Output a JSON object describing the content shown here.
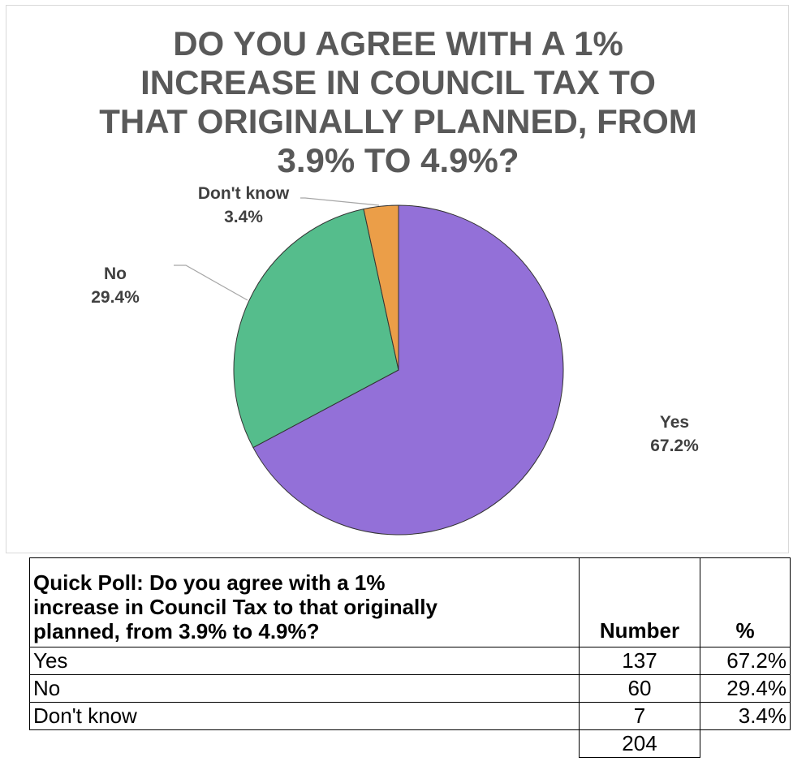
{
  "chart_data": {
    "type": "pie",
    "title": "DO YOU AGREE WITH A 1% INCREASE IN COUNCIL TAX TO THAT ORIGINALLY PLANNED, FROM 3.9% TO 4.9%?",
    "title_lines": [
      "DO YOU AGREE WITH A 1%",
      "INCREASE IN COUNCIL TAX TO",
      "THAT ORIGINALLY PLANNED, FROM",
      "3.9% TO 4.9%?"
    ],
    "slices": [
      {
        "label": "Yes",
        "value": 67.2,
        "value_label": "67.2%",
        "color": "#9370d8"
      },
      {
        "label": "No",
        "value": 29.4,
        "value_label": "29.4%",
        "color": "#55bd8c"
      },
      {
        "label": "Don't know",
        "value": 3.4,
        "value_label": "3.4%",
        "color": "#eb9e48"
      }
    ],
    "legend": "none"
  },
  "table": {
    "header": {
      "question": "Quick Poll: Do you agree with a 1% increase in Council Tax to that originally planned, from 3.9% to 4.9%?",
      "question_lines": [
        "Quick Poll: Do you agree with a 1%",
        "increase in Council Tax to that originally",
        "planned, from 3.9% to 4.9%?"
      ],
      "number": "Number",
      "percent": "%"
    },
    "rows": [
      {
        "label": "Yes",
        "number": "137",
        "percent": "67.2%"
      },
      {
        "label": "No",
        "number": "60",
        "percent": "29.4%"
      },
      {
        "label": "Don't know",
        "number": "7",
        "percent": "3.4%"
      }
    ],
    "total": "204"
  }
}
